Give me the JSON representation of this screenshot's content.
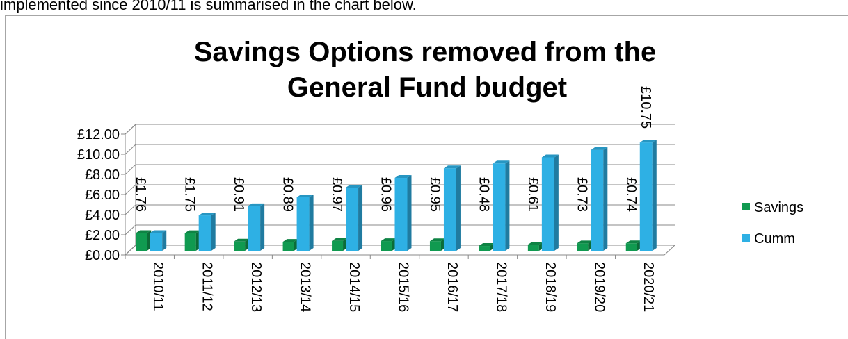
{
  "intro_text": "implemented since 2010/11 is summarised in the chart below.",
  "chart_data": {
    "type": "bar3d",
    "title": [
      "Savings Options removed from the",
      "General Fund budget"
    ],
    "categories": [
      "2010/11",
      "2011/12",
      "2012/13",
      "2013/14",
      "2014/15",
      "2015/16",
      "2016/17",
      "2017/18",
      "2018/19",
      "2019/20",
      "2020/21"
    ],
    "series": [
      {
        "name": "Savings",
        "color": "#109a50",
        "values": [
          1.76,
          1.75,
          0.91,
          0.89,
          0.97,
          0.96,
          0.95,
          0.48,
          0.61,
          0.73,
          0.74
        ],
        "value_labels": [
          "£1.76",
          "£1.75",
          "£0.91",
          "£0.89",
          "£0.97",
          "£0.96",
          "£0.95",
          "£0.48",
          "£0.61",
          "£0.73",
          "£0.74"
        ]
      },
      {
        "name": "Cumm",
        "color": "#2eb0e4",
        "values": [
          1.76,
          3.51,
          4.42,
          5.31,
          6.28,
          7.24,
          8.19,
          8.67,
          9.28,
          10.01,
          10.75
        ],
        "value_labels": [
          null,
          null,
          null,
          null,
          null,
          null,
          null,
          null,
          null,
          null,
          "£10.75"
        ]
      }
    ],
    "ylim": [
      0,
      12
    ],
    "yticks": [
      {
        "value": 0,
        "label": "£0.00"
      },
      {
        "value": 2,
        "label": "£2.00"
      },
      {
        "value": 4,
        "label": "£4.00"
      },
      {
        "value": 6,
        "label": "£6.00"
      },
      {
        "value": 8,
        "label": "£8.00"
      },
      {
        "value": 10,
        "label": "£10.00"
      },
      {
        "value": 12,
        "label": "£12.00"
      }
    ],
    "grid": true,
    "legend": "right"
  }
}
